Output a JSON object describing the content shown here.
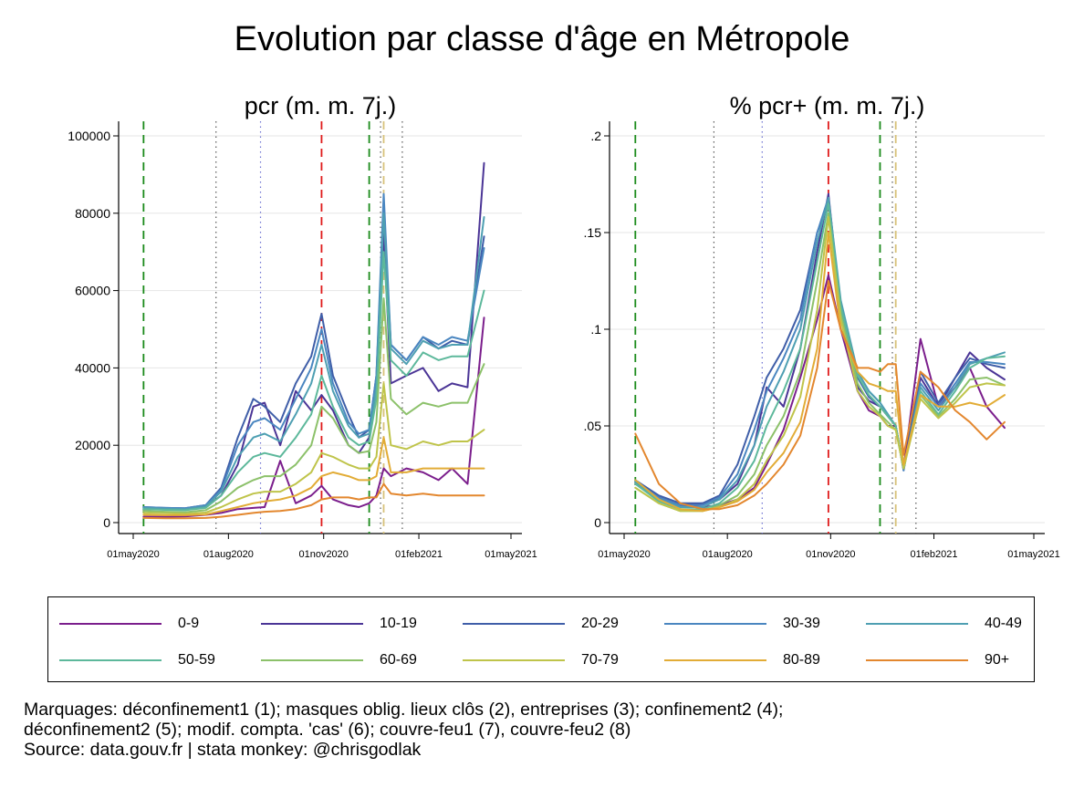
{
  "title": "Evolution par classe d'âge en Métropole",
  "footnote": {
    "line1": "Marquages: déconfinement1 (1); masques oblig. lieux clôs (2), entreprises (3); confinement2 (4);",
    "line2": "déconfinement2 (5); modif. compta. 'cas' (6); couvre-feu1 (7), couvre-feu2 (8)",
    "line3": "Source: data.gouv.fr | stata monkey: @chrisgodlak"
  },
  "colors": {
    "0-9": "#7b1e8c",
    "10-19": "#4b3596",
    "20-29": "#3f5ea8",
    "30-39": "#4a86c0",
    "40-49": "#4e9fb2",
    "50-59": "#5db89b",
    "60-69": "#8cc16a",
    "70-79": "#bfc44a",
    "80-89": "#e2ac36",
    "90+": "#e3872e"
  },
  "legend": [
    "0-9",
    "10-19",
    "20-29",
    "30-39",
    "40-49",
    "50-59",
    "60-69",
    "70-79",
    "80-89",
    "90+"
  ],
  "markers": [
    {
      "id": 1,
      "name": "déconfinement1",
      "date": "2020-05-11",
      "color": "#1a8a1a",
      "style": "dash"
    },
    {
      "id": 2,
      "name": "masques oblig. lieux clôs",
      "date": "2020-07-20",
      "color": "#555555",
      "style": "dot"
    },
    {
      "id": 3,
      "name": "entreprises",
      "date": "2020-09-01",
      "color": "#6a6fd0",
      "style": "dot"
    },
    {
      "id": 4,
      "name": "confinement2",
      "date": "2020-10-30",
      "color": "#e01b1b",
      "style": "dash"
    },
    {
      "id": 5,
      "name": "déconfinement2",
      "date": "2020-12-15",
      "color": "#1a8a1a",
      "style": "dash"
    },
    {
      "id": 6,
      "name": "modif. compta. 'cas'",
      "date": "2020-12-29",
      "color": "#d7c27a",
      "style": "dash"
    },
    {
      "id": 7,
      "name": "couvre-feu1",
      "date": "2020-12-26",
      "color": "#555555",
      "style": "dot"
    },
    {
      "id": 8,
      "name": "couvre-feu2",
      "date": "2021-01-16",
      "color": "#555555",
      "style": "dot"
    }
  ],
  "chart_data": [
    {
      "type": "line",
      "title": "pcr (m. m. 7j.)",
      "xlabel": "",
      "ylabel": "",
      "x_ticks": [
        "01may2020",
        "01aug2020",
        "01nov2020",
        "01feb2021",
        "01may2021"
      ],
      "x_range": [
        "2020-05-01",
        "2021-05-01"
      ],
      "y_ticks": [
        "0",
        "20000",
        "40000",
        "60000",
        "80000",
        "100000"
      ],
      "ylim": [
        0,
        100000
      ],
      "grid": true,
      "x": [
        "2020-05-11",
        "2020-06-01",
        "2020-06-20",
        "2020-07-10",
        "2020-07-25",
        "2020-08-10",
        "2020-08-25",
        "2020-09-05",
        "2020-09-20",
        "2020-10-05",
        "2020-10-20",
        "2020-10-30",
        "2020-11-10",
        "2020-11-25",
        "2020-12-05",
        "2020-12-15",
        "2020-12-22",
        "2020-12-29",
        "2021-01-05",
        "2021-01-20",
        "2021-02-05",
        "2021-02-20",
        "2021-03-05",
        "2021-03-20",
        "2021-04-05"
      ],
      "series": [
        {
          "name": "0-9",
          "values": [
            1500,
            1500,
            1600,
            2000,
            2500,
            3500,
            3800,
            4000,
            16000,
            5000,
            7000,
            9500,
            6000,
            4500,
            4000,
            5000,
            7000,
            14000,
            12000,
            14000,
            13000,
            11000,
            14000,
            10000,
            53000
          ]
        },
        {
          "name": "10-19",
          "values": [
            3500,
            3500,
            3600,
            4000,
            7000,
            15000,
            30000,
            31000,
            20000,
            34000,
            29000,
            33000,
            29000,
            20000,
            18000,
            22000,
            35000,
            75000,
            36000,
            38000,
            40000,
            34000,
            36000,
            35000,
            93000
          ]
        },
        {
          "name": "20-29",
          "values": [
            4000,
            3800,
            3700,
            4500,
            9000,
            22000,
            32000,
            30000,
            26000,
            36000,
            43000,
            54000,
            38000,
            28000,
            22000,
            24000,
            38000,
            80000,
            46000,
            42000,
            48000,
            45000,
            47000,
            46000,
            74000
          ]
        },
        {
          "name": "30-39",
          "values": [
            4000,
            3800,
            3700,
            4500,
            8500,
            20000,
            26000,
            27000,
            24000,
            32000,
            40000,
            50000,
            36000,
            26000,
            23000,
            24000,
            38000,
            85000,
            46000,
            42000,
            48000,
            46000,
            48000,
            47000,
            71000
          ]
        },
        {
          "name": "40-49",
          "values": [
            3800,
            3600,
            3500,
            4200,
            8000,
            17000,
            22000,
            23000,
            21000,
            28000,
            36000,
            46000,
            34000,
            25000,
            22000,
            23000,
            35000,
            80000,
            45000,
            41000,
            47000,
            45000,
            46000,
            46000,
            79000
          ]
        },
        {
          "name": "50-59",
          "values": [
            3500,
            3300,
            3200,
            3800,
            7000,
            13000,
            17000,
            18000,
            17000,
            22000,
            28000,
            38000,
            30000,
            22000,
            20000,
            21000,
            32000,
            70000,
            42000,
            38000,
            44000,
            42000,
            43000,
            43000,
            60000
          ]
        },
        {
          "name": "60-69",
          "values": [
            3000,
            2800,
            2700,
            3200,
            5500,
            9000,
            11000,
            12000,
            12000,
            15000,
            20000,
            30000,
            27000,
            20000,
            18000,
            18500,
            26000,
            58000,
            32000,
            28000,
            31000,
            30000,
            31000,
            31000,
            41000
          ]
        },
        {
          "name": "70-79",
          "values": [
            2500,
            2400,
            2300,
            2600,
            4000,
            6000,
            7500,
            8000,
            8000,
            10000,
            13000,
            18000,
            17000,
            15000,
            14000,
            14000,
            17000,
            36000,
            20000,
            19000,
            21000,
            20000,
            21000,
            21000,
            24000
          ]
        },
        {
          "name": "80-89",
          "values": [
            2000,
            1900,
            1900,
            2100,
            3000,
            4000,
            5000,
            5500,
            6000,
            7000,
            9000,
            12000,
            13000,
            12000,
            11000,
            11000,
            12000,
            22000,
            13000,
            13000,
            14000,
            14000,
            14000,
            14000,
            14000
          ]
        },
        {
          "name": "90+",
          "values": [
            1200,
            1100,
            1100,
            1200,
            1500,
            2000,
            2500,
            2800,
            3000,
            3500,
            4500,
            6000,
            6500,
            6500,
            6000,
            6500,
            6500,
            10000,
            7500,
            7000,
            7500,
            7000,
            7000,
            7000,
            7000
          ]
        }
      ]
    },
    {
      "type": "line",
      "title": "% pcr+ (m. m. 7j.)",
      "xlabel": "",
      "ylabel": "",
      "x_ticks": [
        "01may2020",
        "01aug2020",
        "01nov2020",
        "01feb2021",
        "01may2021"
      ],
      "x_range": [
        "2020-05-01",
        "2021-05-01"
      ],
      "y_ticks": [
        "0",
        ".05",
        ".1",
        ".15",
        ".2"
      ],
      "ylim": [
        0,
        0.2
      ],
      "grid": true,
      "x": [
        "2020-05-11",
        "2020-06-01",
        "2020-06-20",
        "2020-07-10",
        "2020-07-25",
        "2020-08-10",
        "2020-08-25",
        "2020-09-05",
        "2020-09-20",
        "2020-10-05",
        "2020-10-20",
        "2020-10-30",
        "2020-11-10",
        "2020-11-25",
        "2020-12-05",
        "2020-12-15",
        "2020-12-22",
        "2020-12-29",
        "2021-01-05",
        "2021-01-20",
        "2021-02-05",
        "2021-02-20",
        "2021-03-05",
        "2021-03-20",
        "2021-04-05"
      ],
      "series": [
        {
          "name": "0-9",
          "values": [
            0.02,
            0.013,
            0.009,
            0.008,
            0.009,
            0.012,
            0.018,
            0.03,
            0.048,
            0.075,
            0.105,
            0.128,
            0.1,
            0.068,
            0.058,
            0.055,
            0.05,
            0.05,
            0.028,
            0.095,
            0.06,
            0.07,
            0.08,
            0.06,
            0.049
          ]
        },
        {
          "name": "10-19",
          "values": [
            0.021,
            0.013,
            0.009,
            0.01,
            0.012,
            0.02,
            0.04,
            0.07,
            0.06,
            0.09,
            0.14,
            0.17,
            0.11,
            0.07,
            0.063,
            0.06,
            0.055,
            0.05,
            0.028,
            0.075,
            0.06,
            0.075,
            0.088,
            0.08,
            0.074
          ]
        },
        {
          "name": "20-29",
          "values": [
            0.022,
            0.014,
            0.01,
            0.01,
            0.014,
            0.03,
            0.055,
            0.075,
            0.09,
            0.11,
            0.15,
            0.165,
            0.11,
            0.075,
            0.065,
            0.06,
            0.055,
            0.05,
            0.027,
            0.078,
            0.062,
            0.075,
            0.085,
            0.082,
            0.08
          ]
        },
        {
          "name": "30-39",
          "values": [
            0.021,
            0.013,
            0.009,
            0.009,
            0.013,
            0.025,
            0.048,
            0.068,
            0.085,
            0.105,
            0.15,
            0.168,
            0.112,
            0.078,
            0.068,
            0.062,
            0.056,
            0.05,
            0.027,
            0.072,
            0.06,
            0.072,
            0.083,
            0.083,
            0.082
          ]
        },
        {
          "name": "40-49",
          "values": [
            0.021,
            0.012,
            0.008,
            0.008,
            0.012,
            0.022,
            0.04,
            0.06,
            0.078,
            0.1,
            0.145,
            0.168,
            0.115,
            0.078,
            0.068,
            0.062,
            0.056,
            0.05,
            0.028,
            0.07,
            0.058,
            0.07,
            0.082,
            0.085,
            0.088
          ]
        },
        {
          "name": "50-59",
          "values": [
            0.02,
            0.011,
            0.007,
            0.007,
            0.01,
            0.018,
            0.032,
            0.05,
            0.068,
            0.09,
            0.135,
            0.165,
            0.112,
            0.076,
            0.066,
            0.06,
            0.055,
            0.05,
            0.028,
            0.068,
            0.056,
            0.068,
            0.08,
            0.085,
            0.086
          ]
        },
        {
          "name": "60-69",
          "values": [
            0.018,
            0.01,
            0.006,
            0.006,
            0.009,
            0.014,
            0.025,
            0.04,
            0.055,
            0.078,
            0.125,
            0.16,
            0.108,
            0.072,
            0.062,
            0.056,
            0.052,
            0.048,
            0.028,
            0.066,
            0.055,
            0.064,
            0.074,
            0.075,
            0.071
          ]
        },
        {
          "name": "70-79",
          "values": [
            0.018,
            0.01,
            0.006,
            0.006,
            0.008,
            0.012,
            0.02,
            0.032,
            0.045,
            0.065,
            0.11,
            0.158,
            0.105,
            0.068,
            0.06,
            0.055,
            0.05,
            0.048,
            0.028,
            0.064,
            0.054,
            0.062,
            0.07,
            0.072,
            0.071
          ]
        },
        {
          "name": "80-89",
          "values": [
            0.022,
            0.012,
            0.007,
            0.006,
            0.008,
            0.011,
            0.017,
            0.026,
            0.036,
            0.052,
            0.09,
            0.15,
            0.1,
            0.078,
            0.072,
            0.07,
            0.068,
            0.068,
            0.03,
            0.066,
            0.06,
            0.06,
            0.062,
            0.06,
            0.066
          ]
        },
        {
          "name": "90+",
          "values": [
            0.046,
            0.02,
            0.01,
            0.007,
            0.007,
            0.009,
            0.014,
            0.02,
            0.03,
            0.045,
            0.08,
            0.125,
            0.1,
            0.08,
            0.08,
            0.078,
            0.082,
            0.082,
            0.035,
            0.078,
            0.07,
            0.058,
            0.052,
            0.043,
            0.052
          ]
        }
      ]
    }
  ]
}
